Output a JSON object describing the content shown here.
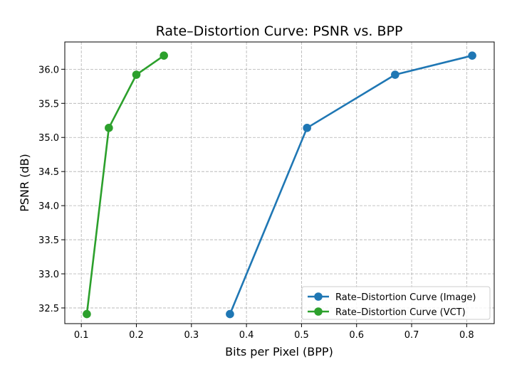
{
  "chart_data": {
    "type": "line",
    "title": "Rate–Distortion Curve: PSNR vs. BPP",
    "xlabel": "Bits per Pixel (BPP)",
    "ylabel": "PSNR (dB)",
    "xlim": [
      0.07,
      0.85
    ],
    "ylim": [
      32.27,
      36.4
    ],
    "xticks": [
      0.1,
      0.2,
      0.3,
      0.4,
      0.5,
      0.6,
      0.7,
      0.8
    ],
    "xtick_labels": [
      "0.1",
      "0.2",
      "0.3",
      "0.4",
      "0.5",
      "0.6",
      "0.7",
      "0.8"
    ],
    "yticks": [
      32.5,
      33.0,
      33.5,
      34.0,
      34.5,
      35.0,
      35.5,
      36.0
    ],
    "ytick_labels": [
      "32.5",
      "33.0",
      "33.5",
      "34.0",
      "34.5",
      "35.0",
      "35.5",
      "36.0"
    ],
    "grid": true,
    "legend_position": "lower-right",
    "series": [
      {
        "name": "Rate–Distortion Curve (Image)",
        "color": "#1f77b4",
        "x": [
          0.37,
          0.51,
          0.67,
          0.81
        ],
        "y": [
          32.41,
          35.14,
          35.92,
          36.2
        ]
      },
      {
        "name": "Rate–Distortion Curve (VCT)",
        "color": "#2ca02c",
        "x": [
          0.11,
          0.15,
          0.2,
          0.25
        ],
        "y": [
          32.41,
          35.14,
          35.92,
          36.2
        ]
      }
    ]
  }
}
